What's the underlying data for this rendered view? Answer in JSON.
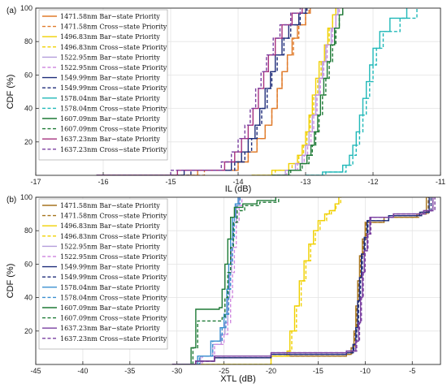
{
  "chart_data": [
    {
      "type": "line",
      "panel_label": "(a)",
      "xlabel": "IL (dB)",
      "ylabel": "CDF (%)",
      "xlim": [
        -17,
        -11
      ],
      "ylim": [
        0,
        100
      ],
      "xticks": [
        "-17",
        "-16",
        "-15",
        "-14",
        "-13",
        "-12",
        "-11"
      ],
      "yticks": [
        "20",
        "40",
        "60",
        "80",
        "100"
      ],
      "grid": true,
      "legend_position": "top-left",
      "series": [
        {
          "name": "1471.58nm Bar−state Priority",
          "color": "#e07b2a",
          "dash": "solid",
          "x": [
            -16.1,
            -14.6,
            -14.0,
            -13.85,
            -13.72,
            -13.6,
            -13.5,
            -13.42,
            -13.35,
            -13.27,
            -13.2,
            -13.12,
            -13.0,
            -12.93
          ],
          "y": [
            0,
            3,
            8,
            14,
            22,
            30,
            40,
            52,
            62,
            72,
            82,
            90,
            97,
            100
          ]
        },
        {
          "name": "1471.58nm Cross−state Priority",
          "color": "#e07b2a",
          "dash": "dashed",
          "x": [
            -16.1,
            -14.5,
            -14.0,
            -13.85,
            -13.72,
            -13.6,
            -13.5,
            -13.42,
            -13.35,
            -13.27,
            -13.18,
            -13.1,
            -13.0,
            -12.95
          ],
          "y": [
            0,
            3,
            8,
            14,
            22,
            30,
            40,
            52,
            62,
            72,
            82,
            90,
            97,
            100
          ]
        },
        {
          "name": "1496.83nm Bar−state Priority",
          "color": "#f0d000",
          "dash": "solid",
          "x": [
            -13.8,
            -13.5,
            -13.25,
            -13.12,
            -13.05,
            -13.0,
            -12.95,
            -12.9,
            -12.85,
            -12.8,
            -12.72,
            -12.67,
            -12.6,
            -12.55
          ],
          "y": [
            0,
            3,
            7,
            12,
            18,
            26,
            36,
            48,
            58,
            68,
            78,
            88,
            96,
            100
          ]
        },
        {
          "name": "1496.83nm Cross−state Priority",
          "color": "#f0d000",
          "dash": "dashed",
          "x": [
            -13.8,
            -13.45,
            -13.2,
            -13.1,
            -13.03,
            -12.98,
            -12.93,
            -12.88,
            -12.82,
            -12.77,
            -12.7,
            -12.65,
            -12.6,
            -12.55
          ],
          "y": [
            0,
            3,
            7,
            12,
            18,
            26,
            36,
            48,
            58,
            68,
            78,
            88,
            96,
            100
          ]
        },
        {
          "name": "1522.95nm Bar−state Priority",
          "color": "#b39ddb",
          "dash": "solid",
          "x": [
            -13.45,
            -13.3,
            -13.15,
            -13.05,
            -13.0,
            -12.95,
            -12.9,
            -12.85,
            -12.8,
            -12.75,
            -12.7,
            -12.62,
            -12.55,
            -12.52
          ],
          "y": [
            0,
            3,
            7,
            12,
            18,
            26,
            36,
            48,
            58,
            68,
            78,
            88,
            96,
            100
          ]
        },
        {
          "name": "1522.95nm Cross−state Priority",
          "color": "#d18be0",
          "dash": "dashed",
          "x": [
            -13.45,
            -13.28,
            -13.12,
            -13.02,
            -12.97,
            -12.92,
            -12.88,
            -12.83,
            -12.78,
            -12.73,
            -12.68,
            -12.6,
            -12.55,
            -12.5
          ],
          "y": [
            0,
            3,
            7,
            12,
            18,
            26,
            36,
            48,
            58,
            68,
            78,
            88,
            96,
            100
          ]
        },
        {
          "name": "1549.99nm Bar−state Priority",
          "color": "#1f2d7a",
          "dash": "solid",
          "x": [
            -16.1,
            -14.8,
            -14.1,
            -13.95,
            -13.85,
            -13.75,
            -13.68,
            -13.6,
            -13.52,
            -13.45,
            -13.35,
            -13.25,
            -13.1,
            -13.0
          ],
          "y": [
            0,
            3,
            8,
            14,
            22,
            30,
            40,
            52,
            62,
            72,
            82,
            90,
            97,
            100
          ]
        },
        {
          "name": "1549.99nm Cross−state Priority",
          "color": "#1f2d7a",
          "dash": "dashed",
          "x": [
            -16.1,
            -14.7,
            -14.05,
            -13.9,
            -13.8,
            -13.72,
            -13.65,
            -13.57,
            -13.5,
            -13.42,
            -13.32,
            -13.22,
            -13.08,
            -12.98
          ],
          "y": [
            0,
            3,
            8,
            14,
            22,
            30,
            40,
            52,
            62,
            72,
            82,
            90,
            97,
            100
          ]
        },
        {
          "name": "1578.04nm Bar−state Priority",
          "color": "#20b8b8",
          "dash": "solid",
          "x": [
            -13.0,
            -12.75,
            -12.45,
            -12.35,
            -12.3,
            -12.25,
            -12.2,
            -12.15,
            -12.1,
            -12.05,
            -12.0,
            -11.9,
            -11.75,
            -11.5
          ],
          "y": [
            0,
            2,
            6,
            12,
            18,
            26,
            36,
            46,
            56,
            66,
            76,
            86,
            94,
            100
          ]
        },
        {
          "name": "1578.04nm Cross−state Priority",
          "color": "#20b8b8",
          "dash": "dashed",
          "x": [
            -13.0,
            -12.7,
            -12.4,
            -12.3,
            -12.25,
            -12.2,
            -12.15,
            -12.1,
            -12.05,
            -12.0,
            -11.95,
            -11.85,
            -11.6,
            -11.35
          ],
          "y": [
            0,
            2,
            6,
            12,
            18,
            26,
            36,
            46,
            56,
            66,
            76,
            86,
            94,
            100
          ]
        },
        {
          "name": "1607.09nm Bar−state Priority",
          "color": "#1e7a36",
          "dash": "solid",
          "x": [
            -13.5,
            -13.25,
            -13.08,
            -12.98,
            -12.92,
            -12.87,
            -12.82,
            -12.78,
            -12.73,
            -12.68,
            -12.63,
            -12.57,
            -12.5,
            -12.45
          ],
          "y": [
            0,
            3,
            7,
            12,
            18,
            26,
            36,
            48,
            58,
            68,
            78,
            88,
            96,
            100
          ]
        },
        {
          "name": "1607.09nm Cross−state Priority",
          "color": "#1e7a36",
          "dash": "dashed",
          "x": [
            -13.5,
            -13.22,
            -13.05,
            -12.95,
            -12.9,
            -12.85,
            -12.8,
            -12.75,
            -12.7,
            -12.65,
            -12.6,
            -12.55,
            -12.5,
            -12.45
          ],
          "y": [
            0,
            3,
            7,
            12,
            18,
            26,
            36,
            48,
            58,
            68,
            78,
            88,
            96,
            100
          ]
        },
        {
          "name": "1637.23nm Bar−state Priority",
          "color": "#a6307e",
          "dash": "solid",
          "x": [
            -16.1,
            -14.9,
            -14.2,
            -14.05,
            -13.95,
            -13.85,
            -13.78,
            -13.7,
            -13.62,
            -13.55,
            -13.45,
            -13.35,
            -13.2,
            -13.05
          ],
          "y": [
            0,
            3,
            8,
            14,
            22,
            30,
            40,
            52,
            62,
            72,
            82,
            90,
            97,
            100
          ]
        },
        {
          "name": "1637.23nm Cross−state Priority",
          "color": "#7a3fa0",
          "dash": "dashed",
          "x": [
            -16.1,
            -15.0,
            -14.25,
            -14.1,
            -14.0,
            -13.9,
            -13.82,
            -13.74,
            -13.66,
            -13.58,
            -13.48,
            -13.38,
            -13.22,
            -13.08
          ],
          "y": [
            0,
            3,
            8,
            14,
            22,
            30,
            40,
            52,
            62,
            72,
            82,
            90,
            97,
            100
          ]
        }
      ]
    },
    {
      "type": "line",
      "panel_label": "(b)",
      "xlabel": "XTL (dB)",
      "ylabel": "CDF (%)",
      "xlim": [
        -45,
        -2
      ],
      "ylim": [
        0,
        100
      ],
      "xticks": [
        "-45",
        "-40",
        "-35",
        "-30",
        "-25",
        "-20",
        "-15",
        "-10",
        "-5"
      ],
      "yticks": [
        "20",
        "40",
        "60",
        "80",
        "100"
      ],
      "grid": true,
      "legend_position": "top-left",
      "series": [
        {
          "name": "1471.58nm Bar−state Priority",
          "color": "#a6741e",
          "dash": "solid",
          "x": [
            -30.5,
            -28,
            -26,
            -20,
            -12,
            -11.5,
            -11.2,
            -11.0,
            -10.8,
            -10.6,
            -10.3,
            -10.0,
            -8,
            -4.5,
            -3.5
          ],
          "y": [
            0,
            2,
            4,
            5,
            6,
            10,
            20,
            35,
            50,
            65,
            75,
            85,
            88,
            90,
            100
          ]
        },
        {
          "name": "1471.58nm Cross−state Priority",
          "color": "#a6741e",
          "dash": "dashed",
          "x": [
            -30.5,
            -28,
            -26,
            -20,
            -12,
            -11.4,
            -11.1,
            -10.9,
            -10.7,
            -10.5,
            -10.2,
            -9.9,
            -8,
            -4.3,
            -3.3
          ],
          "y": [
            0,
            2,
            4,
            5,
            6,
            10,
            20,
            35,
            50,
            65,
            75,
            85,
            88,
            90,
            100
          ]
        },
        {
          "name": "1496.83nm Bar−state Priority",
          "color": "#f0d000",
          "dash": "solid",
          "x": [
            -28,
            -20,
            -18.3,
            -18.0,
            -17.5,
            -17.0,
            -16.5,
            -16.0,
            -15.5,
            -15.0,
            -14.3,
            -13.8,
            -13.2,
            -12.8
          ],
          "y": [
            0,
            5,
            8,
            20,
            35,
            50,
            62,
            72,
            80,
            86,
            90,
            92,
            96,
            100
          ]
        },
        {
          "name": "1496.83nm Cross−state Priority",
          "color": "#f0d000",
          "dash": "dashed",
          "x": [
            -28,
            -20,
            -18.1,
            -17.8,
            -17.3,
            -16.8,
            -16.3,
            -15.8,
            -15.3,
            -14.8,
            -14.1,
            -13.6,
            -13.1,
            -12.6
          ],
          "y": [
            0,
            5,
            8,
            20,
            35,
            50,
            62,
            72,
            80,
            86,
            90,
            92,
            96,
            100
          ]
        },
        {
          "name": "1522.95nm Bar−state Priority",
          "color": "#b39ddb",
          "dash": "solid",
          "x": [
            -30,
            -27.5,
            -26.2,
            -25.3,
            -24.9,
            -24.6,
            -24.4,
            -24.2,
            -24.0,
            -23.7,
            -23.4
          ],
          "y": [
            0,
            5,
            12,
            18,
            25,
            40,
            55,
            70,
            85,
            95,
            100
          ]
        },
        {
          "name": "1522.95nm Cross−state Priority",
          "color": "#d18be0",
          "dash": "dashed",
          "x": [
            -30,
            -27.3,
            -26.0,
            -25.0,
            -24.6,
            -24.3,
            -24.1,
            -23.9,
            -23.7,
            -23.4,
            -23.1
          ],
          "y": [
            0,
            5,
            12,
            18,
            25,
            40,
            55,
            70,
            85,
            95,
            100
          ]
        },
        {
          "name": "1549.99nm Bar−state Priority",
          "color": "#1f2d7a",
          "dash": "solid",
          "x": [
            -30.5,
            -28,
            -26,
            -20,
            -12,
            -11.3,
            -11.0,
            -10.8,
            -10.6,
            -10.4,
            -10.1,
            -9.8,
            -7.5,
            -4.2,
            -3.2
          ],
          "y": [
            0,
            2,
            4,
            6,
            7,
            12,
            22,
            38,
            52,
            66,
            76,
            86,
            89,
            91,
            100
          ]
        },
        {
          "name": "1549.99nm Cross−state Priority",
          "color": "#1f2d7a",
          "dash": "dashed",
          "x": [
            -30.5,
            -28,
            -26,
            -20,
            -12,
            -11.2,
            -10.9,
            -10.7,
            -10.5,
            -10.3,
            -10.0,
            -9.7,
            -7.5,
            -4.0,
            -3.0
          ],
          "y": [
            0,
            2,
            4,
            6,
            7,
            12,
            22,
            38,
            52,
            66,
            76,
            86,
            89,
            91,
            100
          ]
        },
        {
          "name": "1578.04nm Bar−state Priority",
          "color": "#3a8fd0",
          "dash": "solid",
          "x": [
            -30,
            -27.8,
            -26.4,
            -25.4,
            -25.0,
            -24.7,
            -24.5,
            -24.3,
            -24.1,
            -23.8,
            -23.5
          ],
          "y": [
            0,
            5,
            14,
            22,
            30,
            45,
            60,
            75,
            88,
            96,
            100
          ]
        },
        {
          "name": "1578.04nm Cross−state Priority",
          "color": "#3a8fd0",
          "dash": "dashed",
          "x": [
            -30,
            -27.6,
            -26.2,
            -25.2,
            -24.8,
            -24.5,
            -24.3,
            -24.1,
            -23.9,
            -23.6,
            -23.3
          ],
          "y": [
            0,
            5,
            14,
            22,
            30,
            45,
            60,
            75,
            88,
            96,
            100
          ]
        },
        {
          "name": "1607.09nm Bar−state Priority",
          "color": "#1e7a36",
          "dash": "solid",
          "x": [
            -30,
            -28.5,
            -28.0,
            -25.5,
            -25.2,
            -24.9,
            -24.6,
            -24.3,
            -23.9,
            -23.0,
            -21.5,
            -19.5
          ],
          "y": [
            0,
            10,
            33,
            34,
            45,
            60,
            75,
            88,
            94,
            96,
            98,
            100
          ]
        },
        {
          "name": "1607.09nm Cross−state Priority",
          "color": "#1e7a36",
          "dash": "dashed",
          "x": [
            -30,
            -28.3,
            -27.8,
            -25.2,
            -24.9,
            -24.6,
            -24.3,
            -24.0,
            -23.6,
            -22.8,
            -21.2,
            -19.2
          ],
          "y": [
            0,
            10,
            26,
            28,
            40,
            55,
            70,
            85,
            92,
            95,
            97,
            100
          ]
        },
        {
          "name": "1637.23nm Bar−state Priority",
          "color": "#7a3fa0",
          "dash": "solid",
          "x": [
            -30.5,
            -28,
            -26,
            -20,
            -12,
            -11.0,
            -10.7,
            -10.5,
            -10.3,
            -10.1,
            -9.8,
            -9.5,
            -7.0,
            -3.8,
            -2.8
          ],
          "y": [
            0,
            2,
            5,
            7,
            8,
            14,
            25,
            40,
            55,
            68,
            78,
            88,
            90,
            92,
            100
          ]
        },
        {
          "name": "1637.23nm Cross−state Priority",
          "color": "#7a3fa0",
          "dash": "dashed",
          "x": [
            -30.5,
            -28,
            -26,
            -20,
            -12,
            -10.9,
            -10.6,
            -10.4,
            -10.2,
            -10.0,
            -9.7,
            -9.4,
            -7.0,
            -3.6,
            -2.6
          ],
          "y": [
            0,
            2,
            5,
            7,
            8,
            14,
            25,
            40,
            55,
            68,
            78,
            88,
            90,
            92,
            100
          ]
        }
      ]
    }
  ]
}
